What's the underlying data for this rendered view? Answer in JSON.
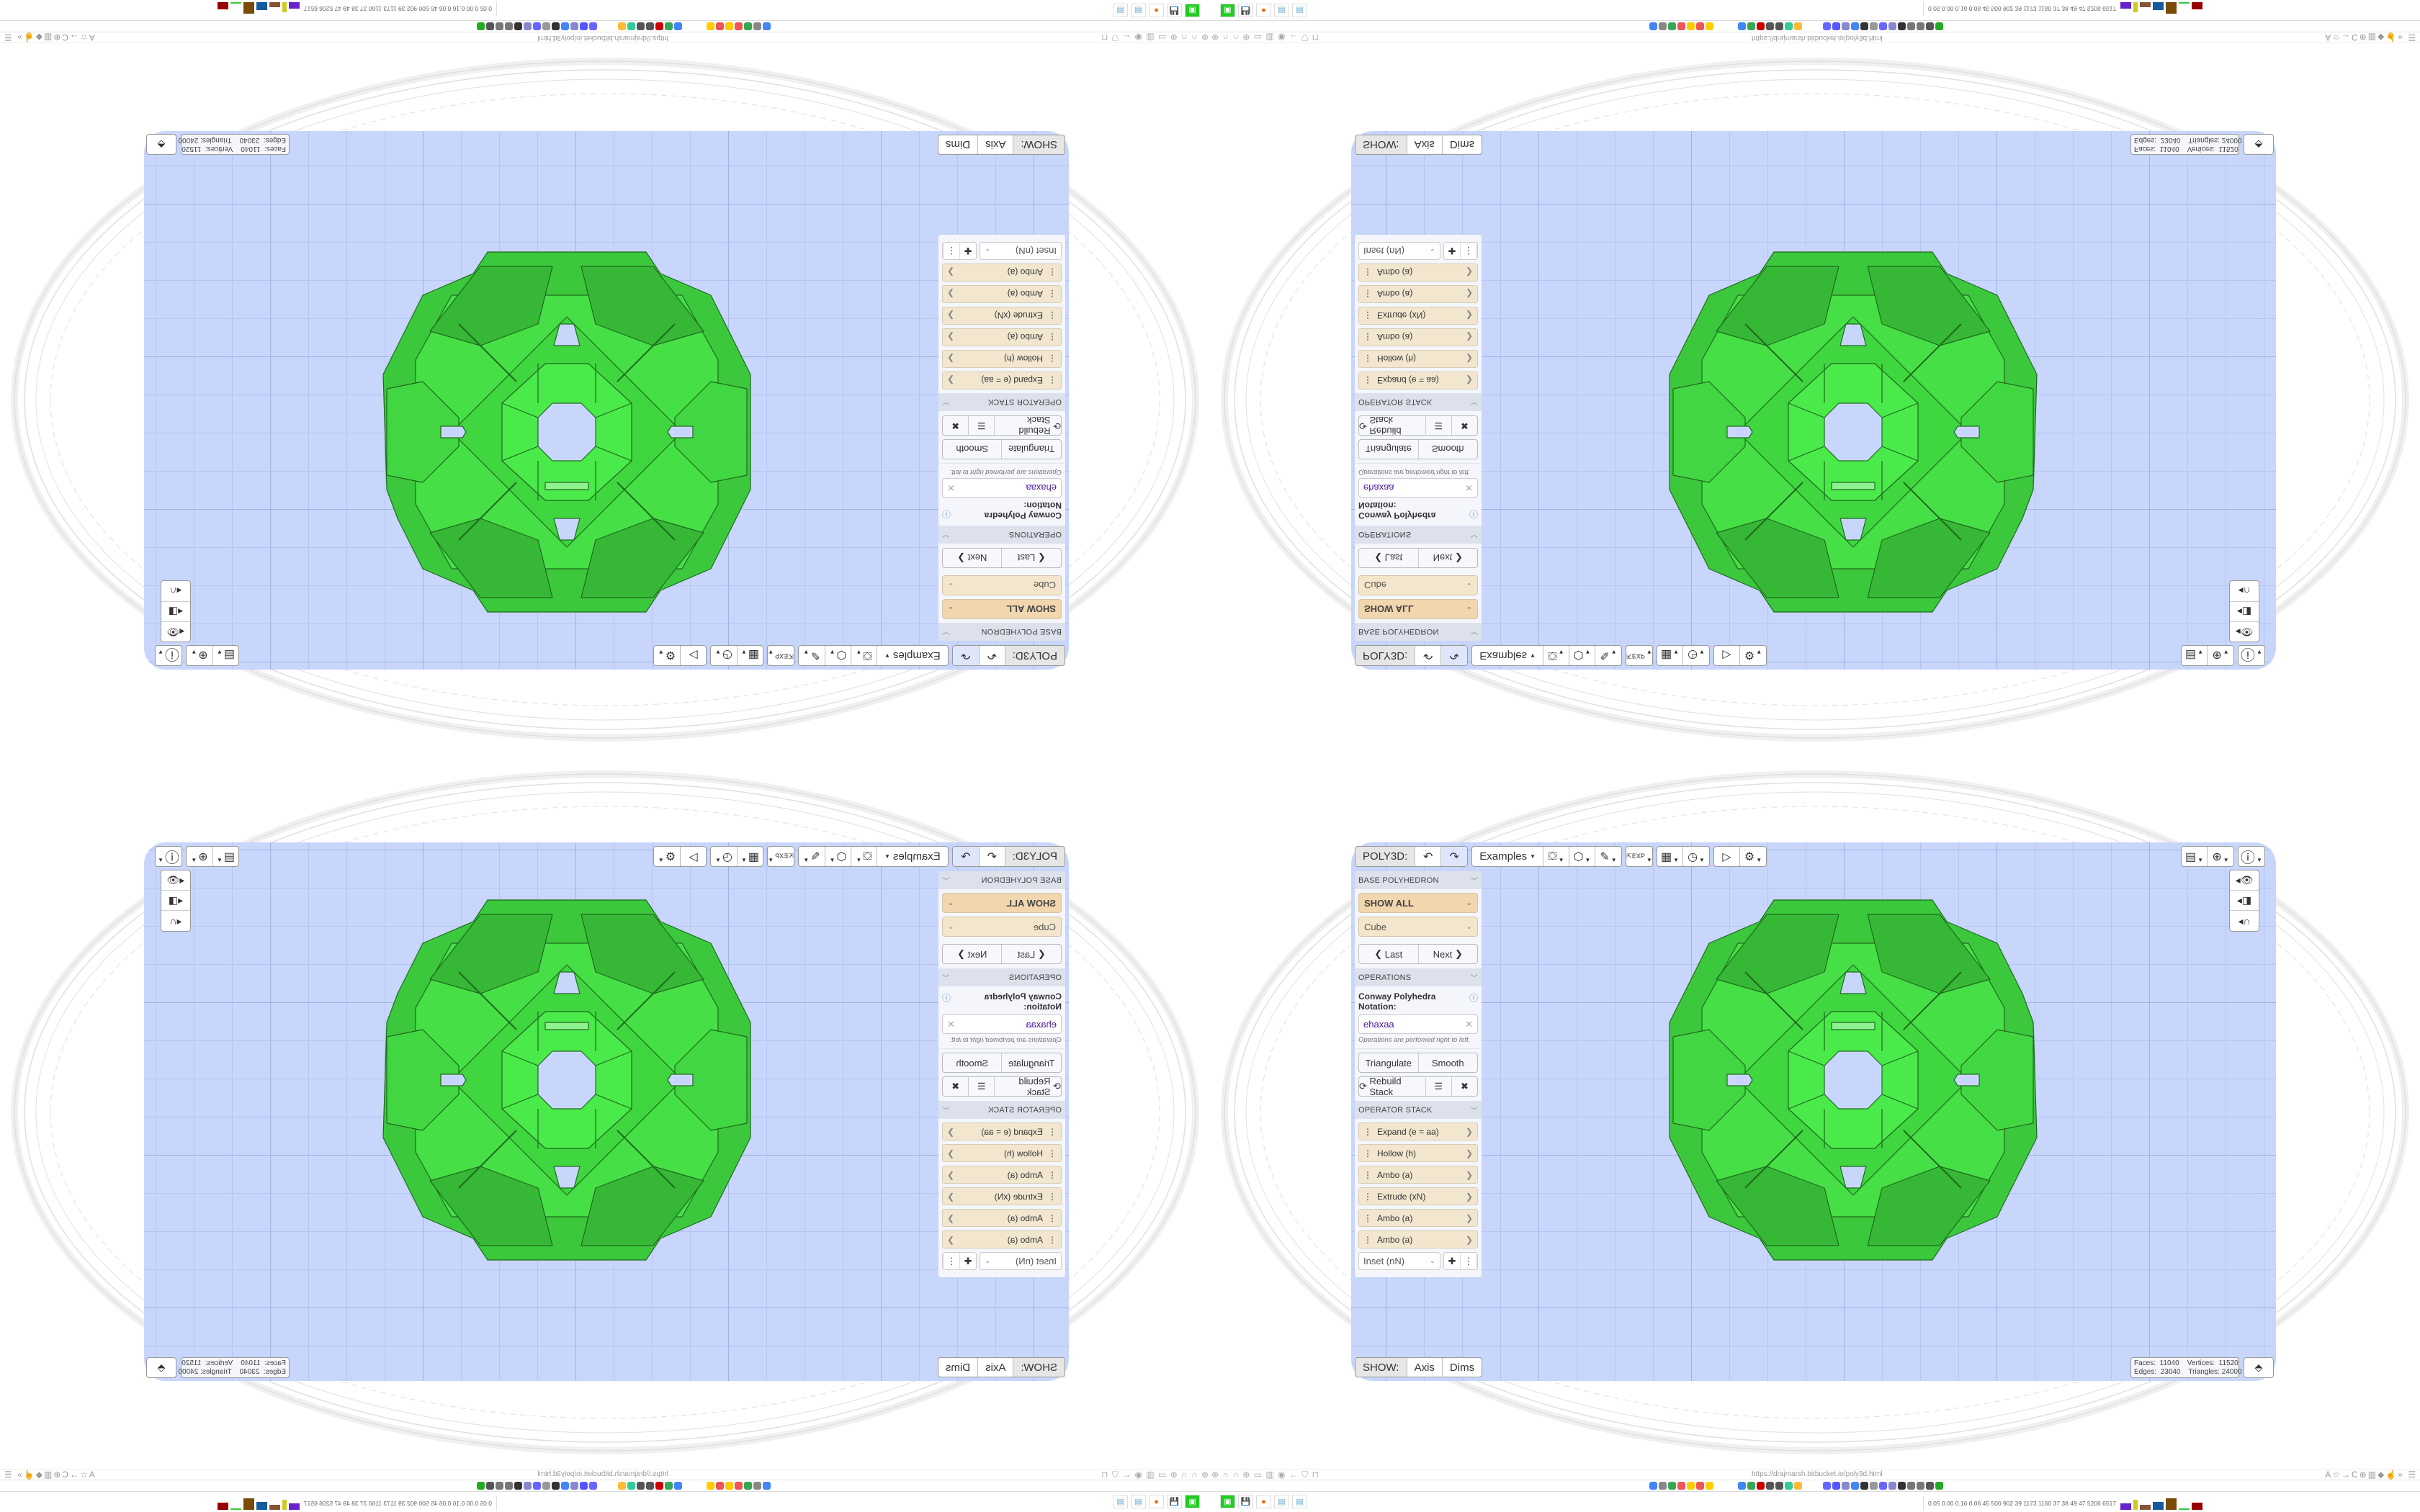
{
  "toolbar": {
    "app_label": "POLY3D:",
    "undo_icon": "undo-icon",
    "redo_icon": "redo-icon",
    "examples_label": "Examples",
    "tool_icons": [
      "paint-bucket-icon",
      "cube-play-icon",
      "pencil-lines-icon",
      "export-icon",
      "calendar-icon",
      "clock-icon",
      "play-icon",
      "gear-icon"
    ],
    "right_icons": [
      "calendar-clock-icon",
      "globe-icon",
      "info-icon"
    ]
  },
  "side_tools": [
    "eye-icon",
    "toggle-icon",
    "magnet-icon"
  ],
  "panel": {
    "base_header": "BASE POLYHEDRON",
    "category_select": "SHOW ALL",
    "shape_select": "Cube",
    "last_label": "Last",
    "next_label": "Next",
    "ops_header": "OPERATIONS",
    "notation_label": "Conway Polyhedra Notation:",
    "notation_value": "ehaxaa",
    "notation_hint": "Operations are perfomed right to left.",
    "triangulate_label": "Triangulate",
    "smooth_label": "Smooth",
    "rebuild_label": "Rebuild Stack",
    "stack_header": "OPERATOR STACK",
    "stack": [
      "Expand (e = aa)",
      "Hollow (h)",
      "Ambo (a)",
      "Extrude (xN)",
      "Ambo (a)",
      "Ambo (a)"
    ],
    "add_select": "Inset (nN)"
  },
  "show_bar": {
    "label": "SHOW:",
    "axis": "Axis",
    "dims": "Dims"
  },
  "stats": {
    "text": "Faces:  11040    Vertices:  11520\nEdges:  23040    Triangles: 24000"
  },
  "colors": {
    "viewport": "#c8d6fb",
    "mesh": "#44e044",
    "panel_select": "#f1d6ae",
    "stack_item": "#f2e6cf"
  },
  "browser": {
    "url": "https://drajmarsh.bitbucket.io/poly3d.html",
    "taskbar_stats": "0.05 0.00 0.16 0.06  45  500  902  39  1173 1160  37  38  49  47  5206 6517"
  }
}
